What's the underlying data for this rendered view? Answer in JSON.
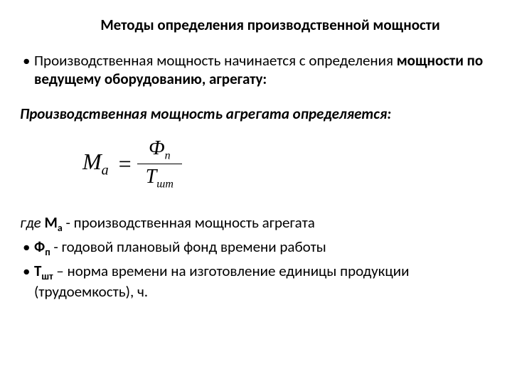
{
  "title": "Методы определения  производственной мощности",
  "intro": {
    "part1": "Производственная мощность начинается с определения ",
    "part2_bold": "мощности по ведущему оборудованию, агрегату:"
  },
  "subtitle": "Производственная мощность агрегата определяется:",
  "formula": {
    "lhs_var": "M",
    "lhs_sub": "а",
    "num_var": "Ф",
    "num_sub": "п",
    "den_var": "Т",
    "den_sub": "шт"
  },
  "where": {
    "prefix": "где ",
    "var1": "М",
    "var1_sub": "а",
    "desc1": " - производственная мощность агрегата"
  },
  "items": [
    {
      "var": "Ф",
      "sub": "п",
      "desc": " - годовой плановый фонд времени работы"
    },
    {
      "var": "Т",
      "sub": "шт",
      "desc": " – норма времени на изготовление единицы продукции (трудоемкость), ч."
    }
  ]
}
